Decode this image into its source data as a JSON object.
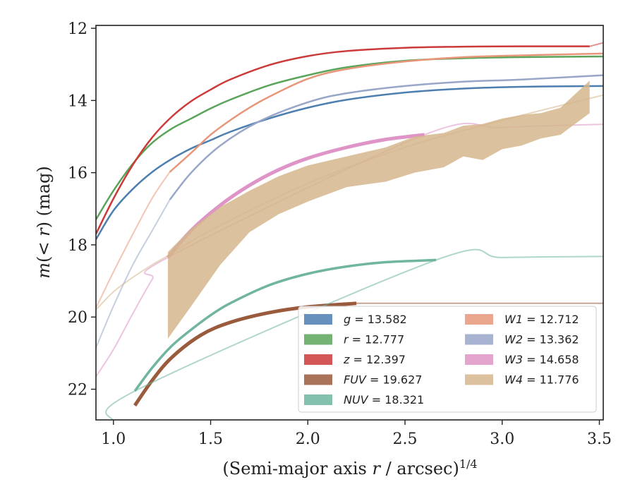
{
  "chart_data": {
    "type": "line",
    "title": "",
    "xlabel": "(Semi-major axis r / arcsec)",
    "xlabel_parts": [
      "(Semi-major axis ",
      "r",
      " / arcsec)",
      "1/4"
    ],
    "ylabel": "m(< r) (mag)",
    "ylabel_parts": [
      "m",
      "(< ",
      "r",
      ") (mag)"
    ],
    "xlim": [
      0.91,
      3.52
    ],
    "ylim": [
      22.85,
      11.92
    ],
    "y_inverted": true,
    "xticks": [
      1.0,
      1.5,
      2.0,
      2.5,
      3.0,
      3.5
    ],
    "xtick_labels": [
      "1.0",
      "1.5",
      "2.0",
      "2.5",
      "3.0",
      "3.5"
    ],
    "yticks": [
      12,
      14,
      16,
      18,
      20,
      22
    ],
    "ytick_labels": [
      "12",
      "14",
      "16",
      "18",
      "20",
      "22"
    ],
    "grid": false,
    "legend_position": "lower-right",
    "legend_ncol": 2,
    "series": [
      {
        "name": "g = 13.582",
        "label_var": "g",
        "label_val": "= 13.582",
        "color": "#4c7eb0",
        "width": 2.5,
        "x": [
          0.91,
          1.0,
          1.1,
          1.2,
          1.3,
          1.4,
          1.5,
          1.6,
          1.8,
          2.0,
          2.2,
          2.5,
          2.8,
          3.1,
          3.52
        ],
        "y": [
          17.85,
          17.05,
          16.45,
          15.98,
          15.62,
          15.33,
          15.1,
          14.87,
          14.5,
          14.2,
          13.98,
          13.78,
          13.67,
          13.62,
          13.6
        ],
        "faint_x": [],
        "faint_y": []
      },
      {
        "name": "r = 12.777",
        "label_var": "r",
        "label_val": "= 12.777",
        "color": "#5aa55a",
        "width": 2.5,
        "x": [
          0.91,
          1.0,
          1.1,
          1.2,
          1.3,
          1.4,
          1.5,
          1.6,
          1.8,
          2.0,
          2.2,
          2.5,
          2.8,
          3.1,
          3.52
        ],
        "y": [
          17.3,
          16.5,
          15.75,
          15.17,
          14.78,
          14.5,
          14.22,
          13.98,
          13.58,
          13.3,
          13.08,
          12.9,
          12.83,
          12.8,
          12.78
        ],
        "faint_x": [],
        "faint_y": []
      },
      {
        "name": "z = 12.397",
        "label_var": "z",
        "label_val": "= 12.397",
        "color": "#cc3a3a",
        "width": 2.5,
        "x": [
          0.91,
          1.0,
          1.1,
          1.2,
          1.3,
          1.4,
          1.5,
          1.6,
          1.8,
          2.0,
          2.2,
          2.5,
          2.8,
          3.1,
          3.45
        ],
        "y": [
          17.7,
          16.72,
          15.78,
          15.02,
          14.45,
          14.02,
          13.7,
          13.42,
          13.02,
          12.77,
          12.63,
          12.54,
          12.51,
          12.5,
          12.5
        ],
        "faint_x": [
          3.45,
          3.52
        ],
        "faint_y": [
          12.5,
          12.4
        ]
      },
      {
        "name": "FUV = 19.627",
        "label_var": "FUV",
        "label_val": "= 19.627",
        "color": "#9a5a3c",
        "width": 5,
        "x": [
          1.11,
          1.2,
          1.3,
          1.45,
          1.6,
          1.8,
          2.0,
          2.25
        ],
        "y": [
          22.45,
          21.75,
          21.12,
          20.5,
          20.15,
          19.88,
          19.72,
          19.62
        ],
        "faint_x": [
          2.25,
          2.5,
          3.0,
          3.52
        ],
        "faint_y": [
          19.62,
          19.62,
          19.62,
          19.62
        ]
      },
      {
        "name": "NUV = 18.321",
        "label_var": "NUV",
        "label_val": "= 18.321",
        "color": "#6fb5a0",
        "width": 3.5,
        "x": [
          1.11,
          1.2,
          1.3,
          1.4,
          1.5,
          1.6,
          1.8,
          2.0,
          2.2,
          2.4,
          2.66
        ],
        "y": [
          22.05,
          21.4,
          20.8,
          20.35,
          19.95,
          19.62,
          19.12,
          18.8,
          18.6,
          18.48,
          18.42
        ],
        "faint_x": [
          0.91,
          1.0,
          1.11,
          2.66,
          3.0,
          3.52
        ],
        "faint_y": [
          24.0,
          23.0,
          22.05,
          18.42,
          18.35,
          18.32
        ]
      },
      {
        "name": "W1 = 12.712",
        "label_var": "W1",
        "label_val": "= 12.712",
        "color": "#e8967a",
        "width": 2.5,
        "x": [
          1.29,
          1.4,
          1.5,
          1.6,
          1.7,
          1.8,
          2.0,
          2.2,
          2.5,
          2.8,
          3.1,
          3.52
        ],
        "y": [
          15.98,
          15.45,
          14.95,
          14.55,
          14.2,
          13.9,
          13.4,
          13.13,
          12.92,
          12.8,
          12.75,
          12.7
        ],
        "faint_x": [
          0.91,
          1.0,
          1.1,
          1.2,
          1.29
        ],
        "faint_y": [
          19.75,
          18.75,
          17.7,
          16.7,
          15.98
        ]
      },
      {
        "name": "W2 = 13.362",
        "label_var": "W2",
        "label_val": "= 13.362",
        "color": "#98a6c8",
        "width": 2.5,
        "x": [
          1.29,
          1.4,
          1.55,
          1.75,
          2.0,
          2.2,
          2.5,
          2.8,
          3.1,
          3.52
        ],
        "y": [
          16.75,
          16.0,
          15.25,
          14.58,
          14.05,
          13.8,
          13.6,
          13.48,
          13.42,
          13.3
        ],
        "faint_x": [
          0.91,
          1.0,
          1.1,
          1.2,
          1.29
        ],
        "faint_y": [
          20.85,
          19.7,
          18.55,
          17.6,
          16.75
        ]
      },
      {
        "name": "W3 = 14.658",
        "label_var": "W3",
        "label_val": "= 14.658",
        "color": "#de94c6",
        "width": 5,
        "x": [
          1.28,
          1.4,
          1.55,
          1.7,
          1.85,
          2.0,
          2.2,
          2.4,
          2.6
        ],
        "y": [
          18.35,
          17.6,
          16.9,
          16.35,
          15.92,
          15.6,
          15.3,
          15.08,
          14.95
        ],
        "faint_x": [
          0.91,
          1.0,
          1.1,
          1.2,
          1.28,
          2.6,
          3.0,
          3.52
        ],
        "faint_y": [
          21.65,
          20.9,
          19.9,
          18.95,
          18.35,
          14.95,
          14.75,
          14.66
        ]
      },
      {
        "name": "W4 = 11.776",
        "label_var": "W4",
        "label_val": "= 11.776",
        "color": "#d5b68c",
        "width": 2.5,
        "band_x": [
          1.28,
          1.4,
          1.55,
          1.7,
          1.85,
          2.0,
          2.2,
          2.4,
          2.55,
          2.7,
          2.8,
          2.9,
          3.0,
          3.1,
          3.2,
          3.3,
          3.45
        ],
        "band_upper": [
          18.2,
          17.55,
          16.95,
          16.5,
          16.1,
          15.8,
          15.55,
          15.3,
          15.0,
          14.9,
          14.7,
          14.65,
          14.5,
          14.4,
          14.35,
          14.2,
          13.45
        ],
        "band_lower": [
          20.6,
          19.7,
          18.55,
          17.65,
          17.15,
          16.8,
          16.4,
          16.25,
          16.0,
          15.85,
          15.55,
          15.65,
          15.35,
          15.25,
          15.05,
          14.95,
          14.35
        ],
        "faint_x": [
          0.91,
          1.0,
          1.1,
          1.2,
          1.28,
          1.5,
          2.0,
          2.5,
          3.0,
          3.52
        ],
        "faint_y": [
          19.8,
          19.3,
          18.9,
          18.55,
          18.3,
          17.6,
          16.3,
          15.3,
          14.55,
          13.85
        ]
      }
    ]
  }
}
